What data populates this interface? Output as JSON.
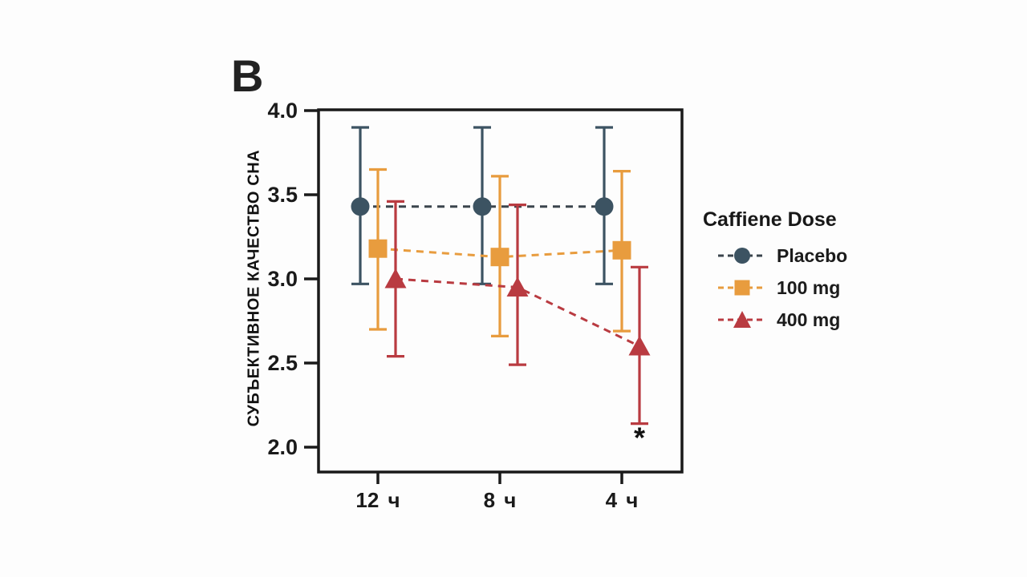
{
  "panel_label": "B",
  "colors": {
    "axis": "#1a1a1a",
    "background": "#fdfdfd",
    "placebo": "#3C5362",
    "placebo_line": "#3B454D",
    "dose100": "#E89C3E",
    "dose400": "#B93B41"
  },
  "chart_data": {
    "type": "line",
    "title": "",
    "xlabel": "",
    "ylabel": "СУБЪЕКТИВНОЕ КАЧЕСТВО СНА",
    "categories": [
      "12 ч",
      "8 ч",
      "4 ч"
    ],
    "ylim": [
      2.0,
      4.0
    ],
    "ytick_labels": [
      "4.0",
      "3.5",
      "3.0",
      "2.5",
      "2.0"
    ],
    "grid": false,
    "legend": {
      "title": "Caffiene Dose",
      "position": "right"
    },
    "series": [
      {
        "name": "Placebo",
        "marker": "circle",
        "color": "#3C5362",
        "line_color": "#3B454D",
        "values": [
          3.43,
          3.43,
          3.43
        ],
        "err_low": [
          2.97,
          2.97,
          2.97
        ],
        "err_high": [
          3.9,
          3.9,
          3.9
        ]
      },
      {
        "name": "100 mg",
        "marker": "square",
        "color": "#E89C3E",
        "line_color": "#E89C3E",
        "values": [
          3.18,
          3.13,
          3.17
        ],
        "err_low": [
          2.7,
          2.66,
          2.69
        ],
        "err_high": [
          3.65,
          3.61,
          3.64
        ]
      },
      {
        "name": "400 mg",
        "marker": "triangle",
        "color": "#B93B41",
        "line_color": "#B93B41",
        "values": [
          3.0,
          2.95,
          2.6
        ],
        "err_low": [
          2.54,
          2.49,
          2.14
        ],
        "err_high": [
          3.46,
          3.44,
          3.07
        ]
      }
    ],
    "annotations": [
      {
        "text": "*",
        "category": "4 ч",
        "series": "400 mg",
        "y": 2.07
      }
    ]
  }
}
